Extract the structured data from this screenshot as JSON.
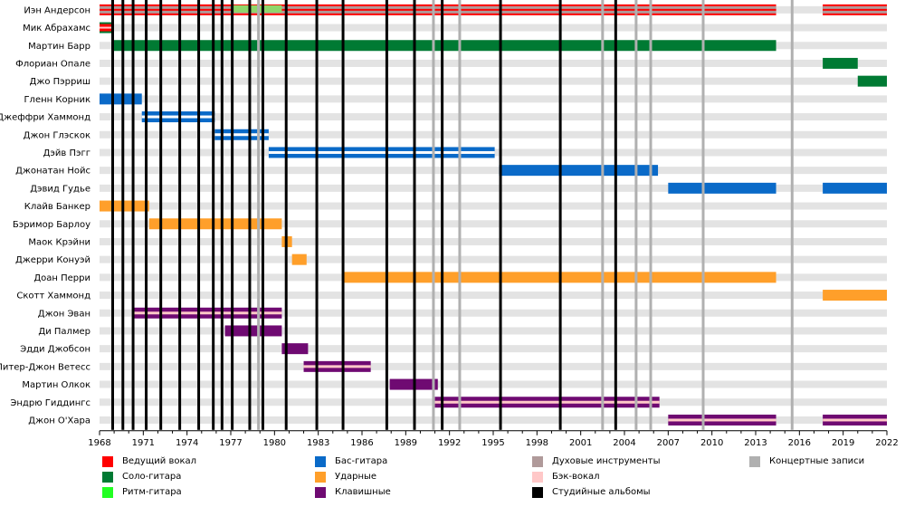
{
  "chart_data": {
    "type": "timeline",
    "title": "",
    "x_range": [
      1968,
      2022
    ],
    "x_ticks": [
      1968,
      1971,
      1974,
      1977,
      1980,
      1983,
      1986,
      1989,
      1992,
      1995,
      1998,
      2001,
      2004,
      2007,
      2010,
      2013,
      2016,
      2019,
      2022
    ],
    "grid": true,
    "legend_position": "bottom",
    "colors": {
      "lead_vocals": "#ff0000",
      "lead_guitar": "#007a33",
      "rhythm_guitar": "#22ff22",
      "bass": "#0a6ac8",
      "drums": "#ff9f2a",
      "keyboards": "#6f0a72",
      "winds": "#b09a9a",
      "backing_vocals": "#ffc8c8",
      "studio_albums": "#000000",
      "live_albums": "#b0b0b0"
    },
    "legend": [
      {
        "key": "lead_vocals",
        "label": "Ведущий вокал"
      },
      {
        "key": "lead_guitar",
        "label": "Соло-гитара"
      },
      {
        "key": "rhythm_guitar",
        "label": "Ритм-гитара"
      },
      {
        "key": "bass",
        "label": "Бас-гитара"
      },
      {
        "key": "drums",
        "label": "Ударные"
      },
      {
        "key": "keyboards",
        "label": "Клавишные"
      },
      {
        "key": "winds",
        "label": "Духовые инструменты"
      },
      {
        "key": "backing_vocals",
        "label": "Бэк-вокал"
      },
      {
        "key": "studio_albums",
        "label": "Студийные альбомы"
      },
      {
        "key": "live_albums",
        "label": "Концертные записи"
      }
    ],
    "members": [
      {
        "name": "Иэн Андерсон",
        "periods": [
          {
            "from": 1968.0,
            "to": 2014.4,
            "roles": [
              "lead_vocals",
              "winds"
            ]
          },
          {
            "from": 1977.1,
            "to": 1980.5,
            "roles": [
              "rhythm_guitar"
            ]
          },
          {
            "from": 2017.6,
            "to": 2022.0,
            "roles": [
              "lead_vocals",
              "winds"
            ]
          }
        ]
      },
      {
        "name": "Мик Абрахамс",
        "periods": [
          {
            "from": 1968.0,
            "to": 1968.9,
            "roles": [
              "lead_guitar",
              "lead_vocals",
              "backing_vocals"
            ]
          }
        ]
      },
      {
        "name": "Мартин Барр",
        "periods": [
          {
            "from": 1968.9,
            "to": 2014.4,
            "roles": [
              "lead_guitar"
            ]
          }
        ]
      },
      {
        "name": "Флориан Опале",
        "periods": [
          {
            "from": 2017.6,
            "to": 2020.0,
            "roles": [
              "lead_guitar"
            ]
          }
        ]
      },
      {
        "name": "Джо Пэрриш",
        "periods": [
          {
            "from": 2020.0,
            "to": 2022.0,
            "roles": [
              "lead_guitar"
            ]
          }
        ]
      },
      {
        "name": "Гленн Корник",
        "periods": [
          {
            "from": 1968.0,
            "to": 1970.9,
            "roles": [
              "bass"
            ]
          }
        ]
      },
      {
        "name": "Джеффри Хаммонд",
        "periods": [
          {
            "from": 1970.9,
            "to": 1975.9,
            "roles": [
              "bass",
              "backing_vocals"
            ]
          }
        ]
      },
      {
        "name": "Джон Глэскок",
        "periods": [
          {
            "from": 1975.9,
            "to": 1979.6,
            "roles": [
              "bass",
              "backing_vocals"
            ]
          }
        ]
      },
      {
        "name": "Дэйв Пэгг",
        "periods": [
          {
            "from": 1979.6,
            "to": 1995.1,
            "roles": [
              "bass",
              "backing_vocals"
            ]
          }
        ]
      },
      {
        "name": "Джонатан Нойс",
        "periods": [
          {
            "from": 1995.4,
            "to": 2006.3,
            "roles": [
              "bass"
            ]
          }
        ]
      },
      {
        "name": "Дэвид Гудье",
        "periods": [
          {
            "from": 2007.0,
            "to": 2014.4,
            "roles": [
              "bass"
            ]
          },
          {
            "from": 2017.6,
            "to": 2022.0,
            "roles": [
              "bass"
            ]
          }
        ]
      },
      {
        "name": "Клайв Банкер",
        "periods": [
          {
            "from": 1968.0,
            "to": 1971.4,
            "roles": [
              "drums"
            ]
          }
        ]
      },
      {
        "name": "Бэримор Барлоу",
        "periods": [
          {
            "from": 1971.4,
            "to": 1980.5,
            "roles": [
              "drums"
            ]
          }
        ]
      },
      {
        "name": "Маок Крэйни",
        "periods": [
          {
            "from": 1980.5,
            "to": 1981.2,
            "roles": [
              "drums"
            ]
          }
        ]
      },
      {
        "name": "Джерри Конуэй",
        "periods": [
          {
            "from": 1981.2,
            "to": 1982.2,
            "roles": [
              "drums"
            ]
          }
        ]
      },
      {
        "name": "Доан Перри",
        "periods": [
          {
            "from": 1984.7,
            "to": 2014.4,
            "roles": [
              "drums"
            ]
          }
        ]
      },
      {
        "name": "Скотт Хаммонд",
        "periods": [
          {
            "from": 2017.6,
            "to": 2022.0,
            "roles": [
              "drums"
            ]
          }
        ]
      },
      {
        "name": "Джон Эван",
        "periods": [
          {
            "from": 1970.3,
            "to": 1980.5,
            "roles": [
              "keyboards",
              "backing_vocals"
            ]
          }
        ]
      },
      {
        "name": "Ди Палмер",
        "periods": [
          {
            "from": 1976.6,
            "to": 1980.5,
            "roles": [
              "keyboards"
            ]
          }
        ]
      },
      {
        "name": "Эдди Джобсон",
        "periods": [
          {
            "from": 1980.5,
            "to": 1982.3,
            "roles": [
              "keyboards"
            ]
          }
        ]
      },
      {
        "name": "Питер-Джон Ветесс",
        "periods": [
          {
            "from": 1982.0,
            "to": 1986.6,
            "roles": [
              "keyboards",
              "backing_vocals"
            ]
          }
        ]
      },
      {
        "name": "Мартин Олкок",
        "periods": [
          {
            "from": 1987.9,
            "to": 1991.2,
            "roles": [
              "keyboards"
            ]
          }
        ]
      },
      {
        "name": "Эндрю Гиддингс",
        "periods": [
          {
            "from": 1991.0,
            "to": 2006.4,
            "roles": [
              "keyboards",
              "backing_vocals"
            ]
          }
        ]
      },
      {
        "name": "Джон О'Хара",
        "periods": [
          {
            "from": 2007.0,
            "to": 2014.4,
            "roles": [
              "keyboards",
              "backing_vocals"
            ]
          },
          {
            "from": 2017.6,
            "to": 2022.0,
            "roles": [
              "keyboards",
              "backing_vocals"
            ]
          }
        ]
      }
    ],
    "studio_albums": [
      1968.9,
      1969.6,
      1970.3,
      1971.2,
      1972.2,
      1973.5,
      1974.8,
      1975.8,
      1976.4,
      1977.1,
      1978.3,
      1979.2,
      1980.8,
      1982.9,
      1984.7,
      1987.7,
      1989.6,
      1991.5,
      1995.5,
      1999.6,
      2003.4
    ],
    "live_albums": [
      1978.9,
      1990.9,
      1992.7,
      2002.5,
      2004.8,
      2005.8,
      2009.4,
      2015.5
    ]
  }
}
